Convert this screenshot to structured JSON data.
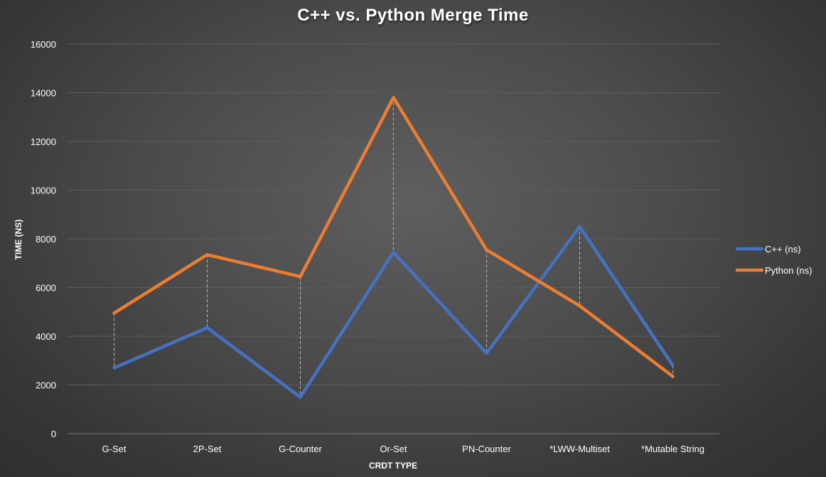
{
  "chart_data": {
    "type": "line",
    "title": "C++ vs. Python Merge Time",
    "xlabel": "CRDT TYPE",
    "ylabel": "TIME (NS)",
    "categories": [
      "G-Set",
      "2P-Set",
      "G-Counter",
      "Or-Set",
      "PN-Counter",
      "*LWW-Multiset",
      "*Mutable String"
    ],
    "ylim": [
      0,
      16000
    ],
    "yticks": [
      0,
      2000,
      4000,
      6000,
      8000,
      10000,
      12000,
      14000,
      16000
    ],
    "grid": true,
    "high_low_lines": true,
    "legend_position": "right",
    "series": [
      {
        "name": "C++ (ns)",
        "color": "#4472c4",
        "values": [
          2700,
          4350,
          1500,
          7450,
          3300,
          8500,
          2800
        ]
      },
      {
        "name": "Python (ns)",
        "color": "#ed7d31",
        "values": [
          4950,
          7350,
          6450,
          13800,
          7550,
          5250,
          2350
        ]
      }
    ]
  }
}
